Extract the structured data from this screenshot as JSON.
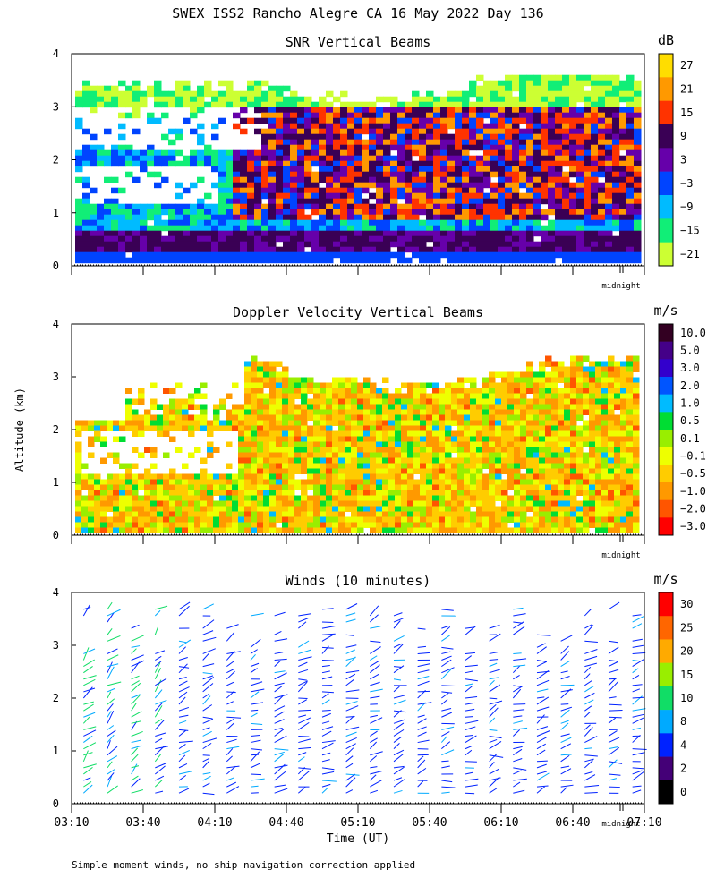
{
  "figure": {
    "title": "SWEX ISS2 Rancho Alegre CA  16 May 2022 Day 136",
    "footnote": "Simple moment winds, no ship navigation correction applied",
    "ylabel": "Altitude (km)",
    "xlabel": "Time (UT)",
    "midnight_label": "midnight"
  },
  "chart_data": [
    {
      "type": "heatmap",
      "title": "SNR Vertical Beams",
      "xlim_minutes_ut": [
        190,
        430
      ],
      "ylim_km": [
        0,
        4
      ],
      "ytick_labels": [
        "0",
        "1",
        "2",
        "3",
        "4"
      ],
      "colorbar": {
        "unit": "dB",
        "labels": [
          "27",
          "21",
          "15",
          "9",
          "3",
          "−3",
          "−9",
          "−15",
          "−21"
        ],
        "colors": [
          "#ffdd00",
          "#ff9900",
          "#ff3300",
          "#3a0055",
          "#6600aa",
          "#0044ff",
          "#00bbff",
          "#11ee77",
          "#ccff33"
        ]
      },
      "description_profile": "strong SNR layer ~0.5 km; convective region 1.0-3.0 km from ~04:10 to 07:00 UT"
    },
    {
      "type": "heatmap",
      "title": "Doppler Velocity Vertical Beams",
      "xlim_minutes_ut": [
        190,
        430
      ],
      "ylim_km": [
        0,
        4
      ],
      "ytick_labels": [
        "0",
        "1",
        "2",
        "3",
        "4"
      ],
      "colorbar": {
        "unit": "m/s",
        "labels": [
          "10.0",
          "5.0",
          "3.0",
          "2.0",
          "1.0",
          "0.5",
          "0.1",
          "−0.1",
          "−0.5",
          "−1.0",
          "−2.0",
          "−3.0"
        ],
        "colors": [
          "#330022",
          "#440088",
          "#3300cc",
          "#0055ff",
          "#00bbff",
          "#00dd33",
          "#99ee00",
          "#eeff00",
          "#ffcc00",
          "#ff9900",
          "#ff5500",
          "#ff0000"
        ]
      }
    },
    {
      "type": "scatter",
      "subtype": "wind_barbs",
      "title": "Winds (10 minutes)",
      "xlim_minutes_ut": [
        190,
        430
      ],
      "ylim_km": [
        0,
        4
      ],
      "ytick_labels": [
        "0",
        "1",
        "2",
        "3",
        "4"
      ],
      "profile_times_ut": [
        "03:15",
        "03:25",
        "03:35",
        "03:45",
        "03:55",
        "04:05",
        "04:15",
        "04:25",
        "04:35",
        "04:45",
        "04:55",
        "05:05",
        "05:15",
        "05:25",
        "05:35",
        "05:45",
        "05:55",
        "06:05",
        "06:15",
        "06:25",
        "06:35",
        "06:45",
        "06:55",
        "07:05"
      ],
      "colorbar": {
        "unit": "m/s",
        "labels": [
          "30",
          "25",
          "20",
          "15",
          "10",
          "8",
          "4",
          "2",
          "0"
        ],
        "colors": [
          "#ff0000",
          "#ff6600",
          "#ffaa00",
          "#99ee00",
          "#11dd66",
          "#00aaff",
          "#0022ff",
          "#440077",
          "#000000"
        ]
      },
      "xtick_labels": [
        "03:10",
        "03:40",
        "04:10",
        "04:40",
        "05:10",
        "05:40",
        "06:10",
        "06:40",
        "07:10"
      ]
    }
  ]
}
